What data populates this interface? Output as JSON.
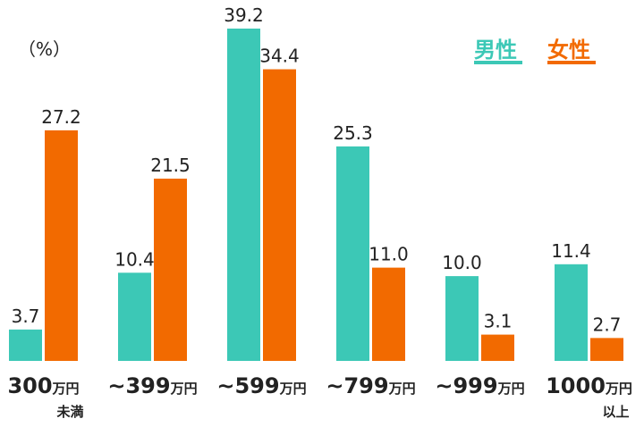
{
  "chart_data": {
    "type": "bar",
    "unit_label": "（%）",
    "categories": [
      "300万円未満",
      "~399万円",
      "~599万円",
      "~799万円",
      "~999万円",
      "1000万円以上"
    ],
    "series": [
      {
        "name": "男性",
        "color": "#3cc8b6",
        "values": [
          3.7,
          10.4,
          39.2,
          25.3,
          10.0,
          11.4
        ],
        "value_labels": [
          "3.7",
          "10.4",
          "39.2",
          "25.3",
          "10.0",
          "11.4"
        ]
      },
      {
        "name": "女性",
        "color": "#f26a00",
        "values": [
          27.2,
          21.5,
          34.4,
          11.0,
          3.1,
          2.7
        ],
        "value_labels": [
          "27.2",
          "21.5",
          "34.4",
          "11.0",
          "3.1",
          "2.7"
        ]
      }
    ]
  }
}
